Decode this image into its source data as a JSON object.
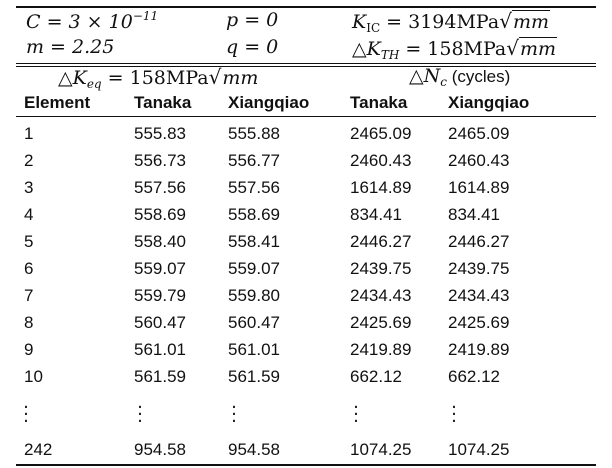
{
  "params": {
    "C": "C = 3 × 10",
    "C_exp": "−11",
    "m": "m = 2.25",
    "p": "p = 0",
    "q": "q = 0",
    "KIC_lhs": "K",
    "KIC_sub": "IC",
    "KIC_eq": " = 3194MPa",
    "KIC_root": "mm",
    "dKTH_lhs": "△K",
    "dKTH_sub": "TH",
    "dKTH_eq": " = 158MPa",
    "dKTH_root": "mm"
  },
  "group_headers": {
    "dKeq_lhs": "△K",
    "dKeq_sub": "eq",
    "dKeq_eq": " = 158MPa",
    "dKeq_root": "mm",
    "dNc_lhs": "△N",
    "dNc_sub": "c",
    "dNc_unit": " (cycles)"
  },
  "columns": [
    "Element",
    "Tanaka",
    "Xiangqiao",
    "Tanaka",
    "Xiangqiao"
  ],
  "rows": [
    [
      "1",
      "555.83",
      "555.88",
      "2465.09",
      "2465.09"
    ],
    [
      "2",
      "556.73",
      "556.77",
      "2460.43",
      "2460.43"
    ],
    [
      "3",
      "557.56",
      "557.56",
      "1614.89",
      "1614.89"
    ],
    [
      "4",
      "558.69",
      "558.69",
      "834.41",
      "834.41"
    ],
    [
      "5",
      "558.40",
      "558.41",
      "2446.27",
      "2446.27"
    ],
    [
      "6",
      "559.07",
      "559.07",
      "2439.75",
      "2439.75"
    ],
    [
      "7",
      "559.79",
      "559.80",
      "2434.43",
      "2434.43"
    ],
    [
      "8",
      "560.47",
      "560.47",
      "2425.69",
      "2425.69"
    ],
    [
      "9",
      "561.01",
      "561.01",
      "2419.89",
      "2419.89"
    ],
    [
      "10",
      "561.59",
      "561.59",
      "662.12",
      "662.12"
    ]
  ],
  "last_row": [
    "242",
    "954.58",
    "954.58",
    "1074.25",
    "1074.25"
  ]
}
